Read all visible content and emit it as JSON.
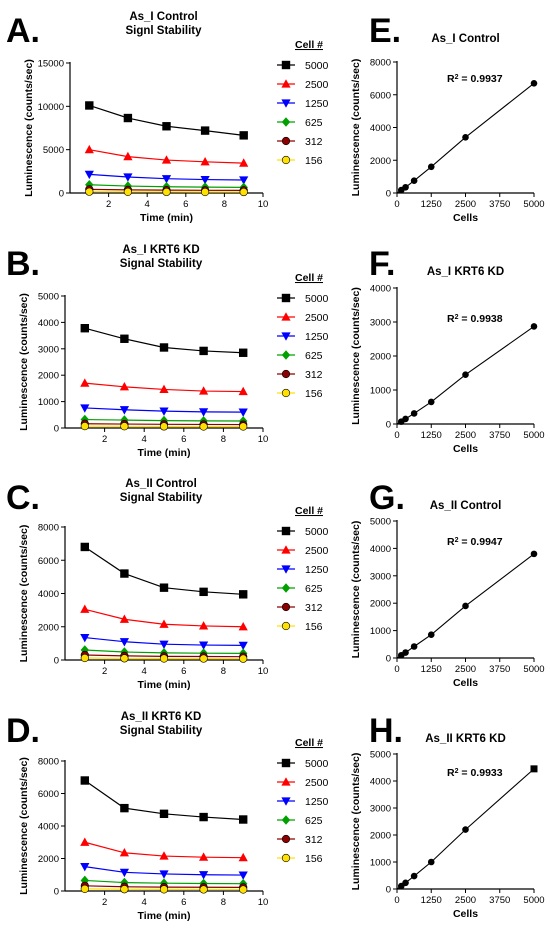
{
  "chart_data": [
    {
      "id": "A",
      "type": "line",
      "panel_letter": "A.",
      "title_lines": [
        "As_I Control",
        "Signl Stability"
      ],
      "xlabel": "Time (min)",
      "ylabel": "Luminescence (counts/sec)",
      "xlim": [
        0,
        10
      ],
      "ylim": [
        0,
        15000
      ],
      "xticks": [
        2,
        4,
        6,
        8,
        10
      ],
      "yticks": [
        0,
        5000,
        10000,
        15000
      ],
      "legend_title": "Cell #",
      "x": [
        1,
        3,
        5,
        7,
        9
      ],
      "series": [
        {
          "name": "5000",
          "color": "#000000",
          "marker": "square",
          "values": [
            10100,
            8650,
            7700,
            7200,
            6650
          ]
        },
        {
          "name": "2500",
          "color": "#ff0000",
          "marker": "triangle-up",
          "values": [
            5000,
            4200,
            3800,
            3600,
            3450
          ]
        },
        {
          "name": "1250",
          "color": "#0000ff",
          "marker": "triangle-down",
          "values": [
            2150,
            1850,
            1650,
            1550,
            1500
          ]
        },
        {
          "name": "625",
          "color": "#00a000",
          "marker": "diamond",
          "values": [
            950,
            800,
            720,
            680,
            650
          ]
        },
        {
          "name": "312",
          "color": "#8b0000",
          "marker": "circle",
          "values": [
            420,
            360,
            330,
            310,
            300
          ]
        },
        {
          "name": "156",
          "color": "#ffe000",
          "marker": "circle",
          "values": [
            150,
            130,
            120,
            115,
            110
          ]
        }
      ]
    },
    {
      "id": "B",
      "type": "line",
      "panel_letter": "B.",
      "title_lines": [
        "As_I KRT6 KD",
        "Signal Stability"
      ],
      "xlabel": "Time (min)",
      "ylabel": "Luminescence (counts/sec)",
      "xlim": [
        0,
        10
      ],
      "ylim": [
        0,
        5000
      ],
      "xticks": [
        2,
        4,
        6,
        8,
        10
      ],
      "yticks": [
        0,
        1000,
        2000,
        3000,
        4000,
        5000
      ],
      "legend_title": "Cell #",
      "x": [
        1,
        3,
        5,
        7,
        9
      ],
      "series": [
        {
          "name": "5000",
          "color": "#000000",
          "marker": "square",
          "values": [
            3780,
            3380,
            3050,
            2920,
            2850
          ]
        },
        {
          "name": "2500",
          "color": "#ff0000",
          "marker": "triangle-up",
          "values": [
            1700,
            1560,
            1460,
            1400,
            1380
          ]
        },
        {
          "name": "1250",
          "color": "#0000ff",
          "marker": "triangle-down",
          "values": [
            760,
            690,
            640,
            610,
            600
          ]
        },
        {
          "name": "625",
          "color": "#00a000",
          "marker": "diamond",
          "values": [
            320,
            300,
            280,
            270,
            265
          ]
        },
        {
          "name": "312",
          "color": "#8b0000",
          "marker": "circle",
          "values": [
            160,
            150,
            140,
            135,
            130
          ]
        },
        {
          "name": "156",
          "color": "#ffe000",
          "marker": "circle",
          "values": [
            70,
            65,
            60,
            58,
            56
          ]
        }
      ]
    },
    {
      "id": "C",
      "type": "line",
      "panel_letter": "C.",
      "title_lines": [
        "As_II Control",
        "Signal Stability"
      ],
      "xlabel": "Time (min)",
      "ylabel": "Luminescence (counts/sec)",
      "xlim": [
        0,
        10
      ],
      "ylim": [
        0,
        8000
      ],
      "xticks": [
        2,
        4,
        6,
        8,
        10
      ],
      "yticks": [
        0,
        2000,
        4000,
        6000,
        8000
      ],
      "legend_title": "Cell #",
      "x": [
        1,
        3,
        5,
        7,
        9
      ],
      "series": [
        {
          "name": "5000",
          "color": "#000000",
          "marker": "square",
          "values": [
            6800,
            5200,
            4350,
            4100,
            3950
          ]
        },
        {
          "name": "2500",
          "color": "#ff0000",
          "marker": "triangle-up",
          "values": [
            3050,
            2450,
            2150,
            2050,
            2000
          ]
        },
        {
          "name": "1250",
          "color": "#0000ff",
          "marker": "triangle-down",
          "values": [
            1350,
            1100,
            950,
            900,
            880
          ]
        },
        {
          "name": "625",
          "color": "#00a000",
          "marker": "diamond",
          "values": [
            600,
            480,
            430,
            410,
            400
          ]
        },
        {
          "name": "312",
          "color": "#8b0000",
          "marker": "circle",
          "values": [
            300,
            250,
            220,
            210,
            200
          ]
        },
        {
          "name": "156",
          "color": "#ffe000",
          "marker": "circle",
          "values": [
            120,
            100,
            90,
            85,
            80
          ]
        }
      ]
    },
    {
      "id": "D",
      "type": "line",
      "panel_letter": "D.",
      "title_lines": [
        "As_II KRT6 KD",
        "Signal Stability"
      ],
      "xlabel": "Time (min)",
      "ylabel": "Luminescence (counts/sec)",
      "xlim": [
        0,
        10
      ],
      "ylim": [
        0,
        8000
      ],
      "xticks": [
        2,
        4,
        6,
        8,
        10
      ],
      "yticks": [
        0,
        2000,
        4000,
        6000,
        8000
      ],
      "legend_title": "Cell #",
      "x": [
        1,
        3,
        5,
        7,
        9
      ],
      "series": [
        {
          "name": "5000",
          "color": "#000000",
          "marker": "square",
          "values": [
            6800,
            5100,
            4750,
            4550,
            4400
          ]
        },
        {
          "name": "2500",
          "color": "#ff0000",
          "marker": "triangle-up",
          "values": [
            3000,
            2350,
            2150,
            2080,
            2050
          ]
        },
        {
          "name": "1250",
          "color": "#0000ff",
          "marker": "triangle-down",
          "values": [
            1500,
            1150,
            1050,
            1000,
            980
          ]
        },
        {
          "name": "625",
          "color": "#00a000",
          "marker": "diamond",
          "values": [
            650,
            520,
            480,
            460,
            450
          ]
        },
        {
          "name": "312",
          "color": "#8b0000",
          "marker": "circle",
          "values": [
            320,
            260,
            240,
            230,
            225
          ]
        },
        {
          "name": "156",
          "color": "#ffe000",
          "marker": "circle",
          "values": [
            130,
            110,
            100,
            95,
            90
          ]
        }
      ]
    },
    {
      "id": "E",
      "type": "scatter",
      "panel_letter": "E.",
      "title": "As_I Control",
      "xlabel": "Cells",
      "ylabel": "Luminescence (counts/sec)",
      "xlim": [
        0,
        5000
      ],
      "ylim": [
        0,
        8000
      ],
      "xticks": [
        0,
        1250,
        2500,
        3750,
        5000
      ],
      "yticks": [
        0,
        2000,
        4000,
        6000,
        8000
      ],
      "r2_prefix": "R",
      "r2_sup": "2",
      "r2_value": " = 0.9937",
      "x": [
        0,
        156,
        312,
        625,
        1250,
        2500,
        5000
      ],
      "y": [
        0,
        180,
        350,
        750,
        1600,
        3400,
        6700
      ]
    },
    {
      "id": "F",
      "type": "scatter",
      "panel_letter": "F.",
      "title": "As_I KRT6 KD",
      "xlabel": "Cells",
      "ylabel": "Luminescence (counts/sec)",
      "xlim": [
        0,
        5000
      ],
      "ylim": [
        0,
        4000
      ],
      "xticks": [
        0,
        1250,
        2500,
        3750,
        5000
      ],
      "yticks": [
        0,
        1000,
        2000,
        3000,
        4000
      ],
      "r2_prefix": "R",
      "r2_sup": "2",
      "r2_value": " = 0.9938",
      "x": [
        0,
        156,
        312,
        625,
        1250,
        2500,
        5000
      ],
      "y": [
        0,
        70,
        150,
        310,
        650,
        1450,
        2870
      ]
    },
    {
      "id": "G",
      "type": "scatter",
      "panel_letter": "G.",
      "title": "As_II Control",
      "xlabel": "Cells",
      "ylabel": "Luminescence (counts/sec)",
      "xlim": [
        0,
        5000
      ],
      "ylim": [
        0,
        5000
      ],
      "xticks": [
        0,
        1250,
        2500,
        3750,
        5000
      ],
      "yticks": [
        0,
        1000,
        2000,
        3000,
        4000,
        5000
      ],
      "r2_prefix": "R",
      "r2_sup": "2",
      "r2_value": " = 0.9947",
      "x": [
        0,
        156,
        312,
        625,
        1250,
        2500,
        5000
      ],
      "y": [
        0,
        100,
        200,
        420,
        850,
        1900,
        3800
      ]
    },
    {
      "id": "H",
      "type": "scatter",
      "panel_letter": "H.",
      "title": "As_II KRT6 KD",
      "xlabel": "Cells",
      "ylabel": "Luminescence (counts/sec)",
      "xlim": [
        0,
        5000
      ],
      "ylim": [
        0,
        5000
      ],
      "xticks": [
        0,
        1250,
        2500,
        3750,
        5000
      ],
      "yticks": [
        0,
        1000,
        2000,
        3000,
        4000,
        5000
      ],
      "r2_prefix": "R",
      "r2_sup": "2",
      "r2_value": " = 0.9933",
      "x": [
        0,
        156,
        312,
        625,
        1250,
        2500,
        5000
      ],
      "y": [
        0,
        110,
        230,
        480,
        1000,
        2200,
        4450
      ]
    }
  ]
}
